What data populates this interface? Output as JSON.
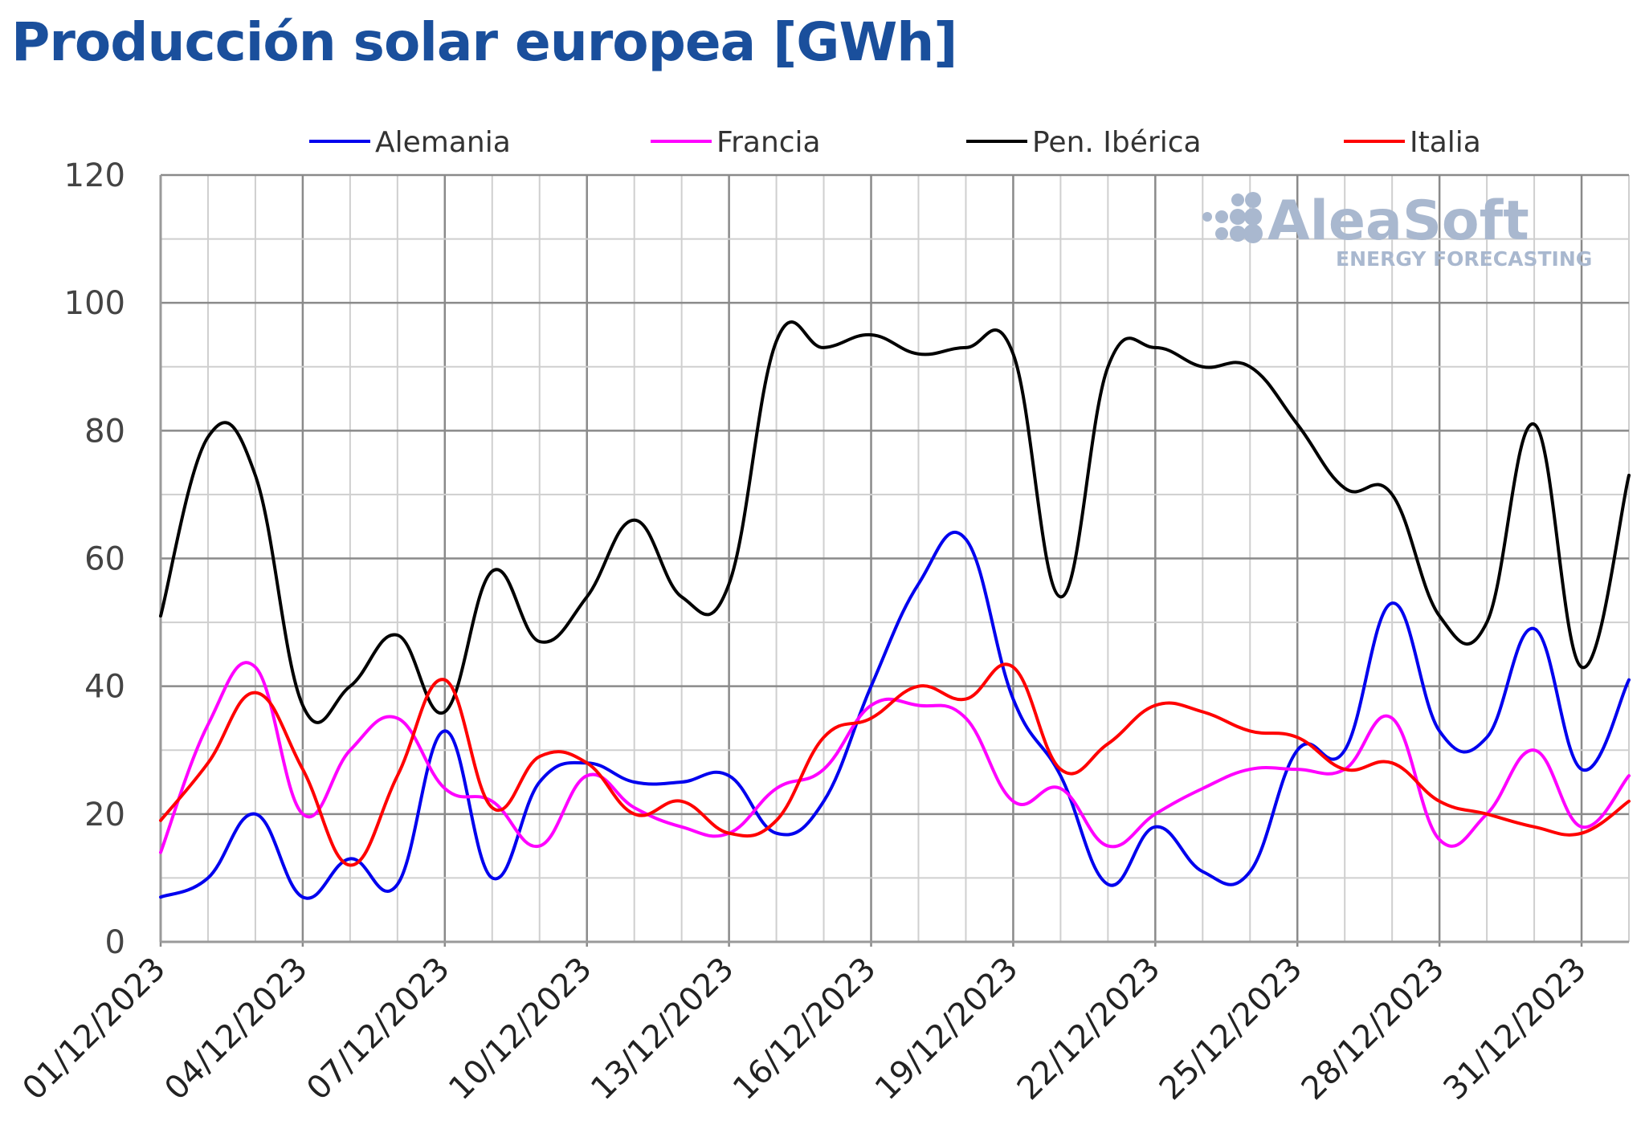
{
  "chart_data": {
    "type": "line",
    "title": "Producción solar europea [GWh]",
    "ylim": [
      0,
      120
    ],
    "yticks": [
      0,
      20,
      40,
      60,
      80,
      100,
      120
    ],
    "grid": true,
    "legend_position": "top",
    "x": [
      "01/12/2023",
      "02/12/2023",
      "03/12/2023",
      "04/12/2023",
      "05/12/2023",
      "06/12/2023",
      "07/12/2023",
      "08/12/2023",
      "09/12/2023",
      "10/12/2023",
      "11/12/2023",
      "12/12/2023",
      "13/12/2023",
      "14/12/2023",
      "15/12/2023",
      "16/12/2023",
      "17/12/2023",
      "18/12/2023",
      "19/12/2023",
      "20/12/2023",
      "21/12/2023",
      "22/12/2023",
      "23/12/2023",
      "24/12/2023",
      "25/12/2023",
      "26/12/2023",
      "27/12/2023",
      "28/12/2023",
      "29/12/2023",
      "30/12/2023",
      "31/12/2023",
      "01/01/2024"
    ],
    "x_tick_labels": [
      "01/12/2023",
      "04/12/2023",
      "07/12/2023",
      "10/12/2023",
      "13/12/2023",
      "16/12/2023",
      "19/12/2023",
      "22/12/2023",
      "25/12/2023",
      "28/12/2023",
      "31/12/2023"
    ],
    "series": [
      {
        "name": "Alemania",
        "color": "#0000ee",
        "values": [
          7,
          10,
          20,
          7,
          13,
          9,
          33,
          10,
          25,
          28,
          25,
          25,
          26,
          17,
          22,
          40,
          56,
          63,
          38,
          26,
          9,
          18,
          11,
          11,
          30,
          30,
          53,
          33,
          32,
          49,
          27,
          41
        ]
      },
      {
        "name": "Francia",
        "color": "#ff00ff",
        "values": [
          14,
          34,
          43,
          20,
          30,
          35,
          24,
          22,
          15,
          26,
          21,
          18,
          17,
          24,
          27,
          37,
          37,
          35,
          22,
          24,
          15,
          20,
          24,
          27,
          27,
          27,
          35,
          16,
          20,
          30,
          18,
          26
        ]
      },
      {
        "name": "Pen. Ibérica",
        "color": "#000000",
        "values": [
          51,
          79,
          73,
          37,
          40,
          48,
          36,
          58,
          47,
          54,
          66,
          54,
          56,
          94,
          93,
          95,
          92,
          93,
          92,
          54,
          90,
          93,
          90,
          90,
          81,
          71,
          70,
          51,
          50,
          81,
          43,
          73
        ]
      },
      {
        "name": "Italia",
        "color": "#ff0000",
        "values": [
          19,
          28,
          39,
          27,
          12,
          26,
          41,
          21,
          29,
          28,
          20,
          22,
          17,
          19,
          32,
          35,
          40,
          38,
          43,
          27,
          31,
          37,
          36,
          33,
          32,
          27,
          28,
          22,
          20,
          18,
          17,
          22
        ]
      }
    ]
  },
  "watermark": {
    "brand": "AleaSoft",
    "tagline": "ENERGY FORECASTING"
  }
}
